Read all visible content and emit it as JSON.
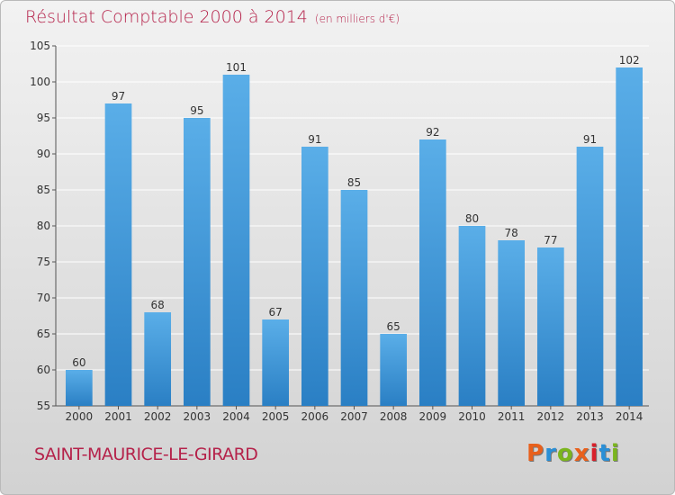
{
  "header": {
    "title": "Résultat Comptable 2000 à 2014",
    "unit": "(en milliers d'€)"
  },
  "footer": {
    "town": "SAINT-MAURICE-LE-GIRARD",
    "logo_text": "Proxiti",
    "logo_colors": [
      "#e8601c",
      "#2a8fd6",
      "#7bb51e",
      "#e8601c",
      "#d8202a",
      "#2a8fd6",
      "#7bb51e"
    ]
  },
  "colors": {
    "bar_top": "#5aaee8",
    "bar_bottom": "#2a7fc4",
    "title": "#b5224a",
    "grid": "#ffffff"
  },
  "chart_data": {
    "type": "bar",
    "categories": [
      "2000",
      "2001",
      "2002",
      "2003",
      "2004",
      "2005",
      "2006",
      "2007",
      "2008",
      "2009",
      "2010",
      "2011",
      "2012",
      "2013",
      "2014"
    ],
    "values": [
      60,
      97,
      68,
      95,
      101,
      67,
      91,
      85,
      65,
      92,
      80,
      78,
      77,
      91,
      102
    ],
    "ylim": [
      55,
      105
    ],
    "yticks": [
      55,
      60,
      65,
      70,
      75,
      80,
      85,
      90,
      95,
      100,
      105
    ],
    "grid": true,
    "title": "Résultat Comptable 2000 à 2014",
    "xlabel": "",
    "ylabel": ""
  }
}
